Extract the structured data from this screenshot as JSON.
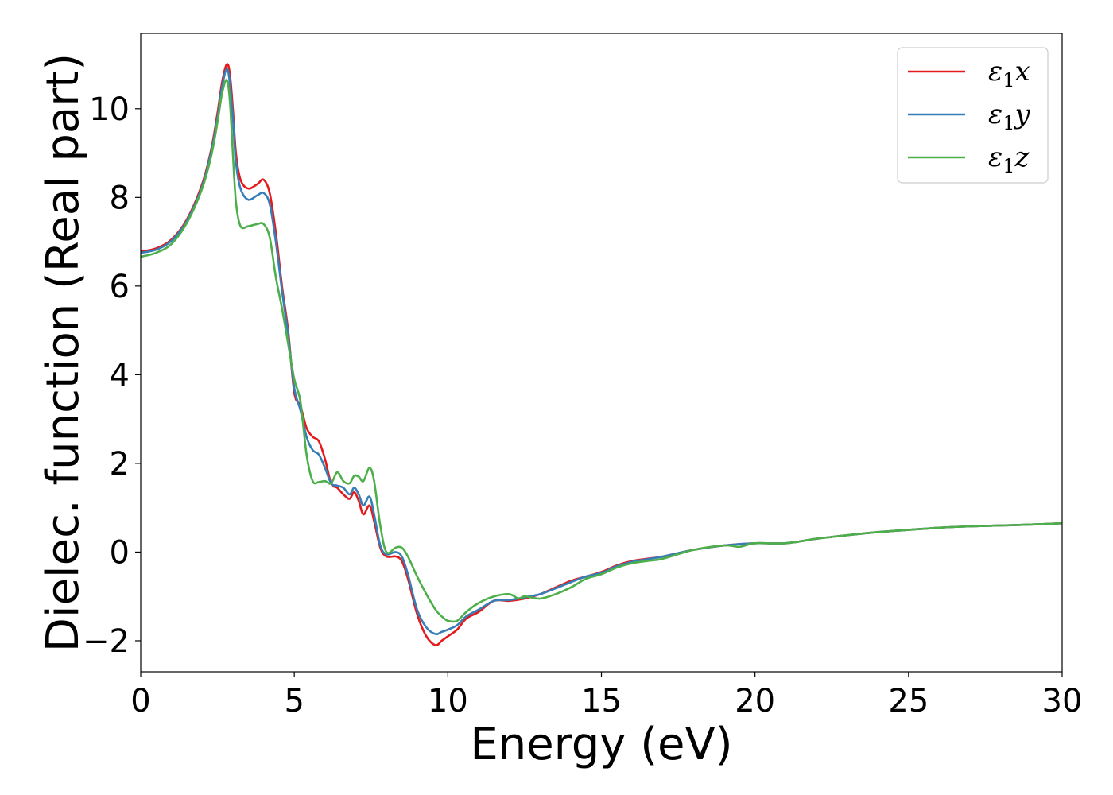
{
  "chart_data": {
    "type": "line",
    "title": "",
    "xlabel": "Energy (eV)",
    "ylabel": "Dielec. function (Real part)",
    "xlim": [
      0,
      30
    ],
    "ylim": [
      -2.7,
      11.7
    ],
    "xticks": [
      0,
      5,
      10,
      15,
      20,
      25,
      30
    ],
    "xtick_labels": [
      "0",
      "5",
      "10",
      "15",
      "20",
      "25",
      "30"
    ],
    "yticks": [
      -2,
      0,
      2,
      4,
      6,
      8,
      10
    ],
    "ytick_labels": [
      "−2",
      "0",
      "2",
      "4",
      "6",
      "8",
      "10"
    ],
    "grid": false,
    "legend": {
      "position": "top-right"
    },
    "series": [
      {
        "name": "ε₁x",
        "legend_base": "ε",
        "legend_sub": "1",
        "legend_var": "x",
        "color": "#e41a1c",
        "points": [
          [
            0,
            6.78
          ],
          [
            0.5,
            6.85
          ],
          [
            1,
            7.05
          ],
          [
            1.5,
            7.5
          ],
          [
            2,
            8.3
          ],
          [
            2.3,
            9.1
          ],
          [
            2.5,
            9.9
          ],
          [
            2.65,
            10.6
          ],
          [
            2.8,
            11.0
          ],
          [
            2.9,
            10.8
          ],
          [
            3.0,
            10.0
          ],
          [
            3.1,
            9.0
          ],
          [
            3.25,
            8.4
          ],
          [
            3.5,
            8.2
          ],
          [
            3.8,
            8.3
          ],
          [
            4.0,
            8.4
          ],
          [
            4.2,
            8.1
          ],
          [
            4.4,
            7.2
          ],
          [
            4.6,
            6.0
          ],
          [
            4.8,
            5.0
          ],
          [
            5.0,
            3.6
          ],
          [
            5.2,
            3.3
          ],
          [
            5.4,
            2.8
          ],
          [
            5.6,
            2.6
          ],
          [
            5.8,
            2.5
          ],
          [
            6.0,
            2.1
          ],
          [
            6.2,
            1.55
          ],
          [
            6.4,
            1.45
          ],
          [
            6.6,
            1.3
          ],
          [
            6.8,
            1.2
          ],
          [
            6.95,
            1.35
          ],
          [
            7.1,
            1.15
          ],
          [
            7.25,
            0.85
          ],
          [
            7.45,
            1.05
          ],
          [
            7.6,
            0.7
          ],
          [
            7.8,
            0.1
          ],
          [
            8.0,
            -0.1
          ],
          [
            8.3,
            -0.1
          ],
          [
            8.5,
            -0.2
          ],
          [
            8.7,
            -0.6
          ],
          [
            9.0,
            -1.4
          ],
          [
            9.3,
            -1.9
          ],
          [
            9.6,
            -2.1
          ],
          [
            9.8,
            -2.0
          ],
          [
            10.0,
            -1.9
          ],
          [
            10.3,
            -1.75
          ],
          [
            10.6,
            -1.5
          ],
          [
            11.0,
            -1.35
          ],
          [
            11.5,
            -1.1
          ],
          [
            12.0,
            -1.1
          ],
          [
            12.5,
            -1.05
          ],
          [
            13.0,
            -0.95
          ],
          [
            13.5,
            -0.8
          ],
          [
            14.0,
            -0.65
          ],
          [
            14.5,
            -0.55
          ],
          [
            15.0,
            -0.45
          ],
          [
            15.5,
            -0.3
          ],
          [
            16.0,
            -0.2
          ],
          [
            16.5,
            -0.15
          ],
          [
            17.0,
            -0.1
          ],
          [
            18.0,
            0.05
          ],
          [
            19.0,
            0.15
          ],
          [
            20.0,
            0.2
          ],
          [
            21.0,
            0.2
          ],
          [
            22.0,
            0.3
          ],
          [
            23.0,
            0.38
          ],
          [
            24.0,
            0.45
          ],
          [
            25.0,
            0.5
          ],
          [
            26.0,
            0.55
          ],
          [
            27.0,
            0.58
          ],
          [
            28.0,
            0.6
          ],
          [
            29.0,
            0.62
          ],
          [
            30.0,
            0.65
          ]
        ]
      },
      {
        "name": "ε₁y",
        "legend_base": "ε",
        "legend_sub": "1",
        "legend_var": "y",
        "color": "#377eb8",
        "points": [
          [
            0,
            6.75
          ],
          [
            0.5,
            6.82
          ],
          [
            1,
            7.02
          ],
          [
            1.5,
            7.47
          ],
          [
            2,
            8.25
          ],
          [
            2.3,
            9.05
          ],
          [
            2.5,
            9.8
          ],
          [
            2.65,
            10.5
          ],
          [
            2.8,
            10.9
          ],
          [
            2.9,
            10.6
          ],
          [
            3.0,
            9.8
          ],
          [
            3.1,
            8.8
          ],
          [
            3.25,
            8.2
          ],
          [
            3.5,
            7.95
          ],
          [
            3.8,
            8.05
          ],
          [
            4.0,
            8.1
          ],
          [
            4.2,
            7.85
          ],
          [
            4.4,
            7.0
          ],
          [
            4.6,
            5.9
          ],
          [
            4.8,
            4.9
          ],
          [
            5.0,
            3.7
          ],
          [
            5.2,
            3.2
          ],
          [
            5.4,
            2.6
          ],
          [
            5.6,
            2.3
          ],
          [
            5.8,
            2.2
          ],
          [
            6.0,
            1.9
          ],
          [
            6.2,
            1.55
          ],
          [
            6.4,
            1.5
          ],
          [
            6.6,
            1.45
          ],
          [
            6.8,
            1.3
          ],
          [
            6.95,
            1.45
          ],
          [
            7.1,
            1.3
          ],
          [
            7.25,
            1.05
          ],
          [
            7.45,
            1.25
          ],
          [
            7.6,
            0.85
          ],
          [
            7.8,
            0.15
          ],
          [
            8.0,
            -0.05
          ],
          [
            8.3,
            0.0
          ],
          [
            8.5,
            -0.1
          ],
          [
            8.7,
            -0.5
          ],
          [
            9.0,
            -1.3
          ],
          [
            9.3,
            -1.7
          ],
          [
            9.6,
            -1.85
          ],
          [
            9.8,
            -1.8
          ],
          [
            10.0,
            -1.75
          ],
          [
            10.3,
            -1.65
          ],
          [
            10.6,
            -1.45
          ],
          [
            11.0,
            -1.3
          ],
          [
            11.5,
            -1.1
          ],
          [
            12.0,
            -1.08
          ],
          [
            12.5,
            -1.02
          ],
          [
            13.0,
            -0.95
          ],
          [
            13.5,
            -0.82
          ],
          [
            14.0,
            -0.68
          ],
          [
            14.5,
            -0.55
          ],
          [
            15.0,
            -0.47
          ],
          [
            15.5,
            -0.32
          ],
          [
            16.0,
            -0.22
          ],
          [
            16.5,
            -0.16
          ],
          [
            17.0,
            -0.1
          ],
          [
            18.0,
            0.05
          ],
          [
            19.0,
            0.15
          ],
          [
            20.0,
            0.2
          ],
          [
            21.0,
            0.2
          ],
          [
            22.0,
            0.3
          ],
          [
            23.0,
            0.38
          ],
          [
            24.0,
            0.45
          ],
          [
            25.0,
            0.5
          ],
          [
            26.0,
            0.55
          ],
          [
            27.0,
            0.58
          ],
          [
            28.0,
            0.6
          ],
          [
            29.0,
            0.62
          ],
          [
            30.0,
            0.65
          ]
        ]
      },
      {
        "name": "ε₁z",
        "legend_base": "ε",
        "legend_sub": "1",
        "legend_var": "z",
        "color": "#4daf4a",
        "points": [
          [
            0,
            6.66
          ],
          [
            0.5,
            6.75
          ],
          [
            1,
            6.95
          ],
          [
            1.5,
            7.42
          ],
          [
            2,
            8.2
          ],
          [
            2.3,
            8.95
          ],
          [
            2.5,
            9.7
          ],
          [
            2.65,
            10.35
          ],
          [
            2.8,
            10.65
          ],
          [
            2.9,
            10.2
          ],
          [
            3.0,
            9.0
          ],
          [
            3.1,
            7.9
          ],
          [
            3.25,
            7.35
          ],
          [
            3.5,
            7.35
          ],
          [
            3.8,
            7.4
          ],
          [
            4.0,
            7.4
          ],
          [
            4.2,
            7.1
          ],
          [
            4.4,
            6.2
          ],
          [
            4.6,
            5.5
          ],
          [
            4.8,
            4.7
          ],
          [
            5.0,
            3.9
          ],
          [
            5.2,
            3.4
          ],
          [
            5.4,
            2.2
          ],
          [
            5.6,
            1.6
          ],
          [
            5.8,
            1.58
          ],
          [
            6.0,
            1.6
          ],
          [
            6.2,
            1.55
          ],
          [
            6.4,
            1.8
          ],
          [
            6.6,
            1.6
          ],
          [
            6.8,
            1.55
          ],
          [
            6.95,
            1.72
          ],
          [
            7.1,
            1.7
          ],
          [
            7.25,
            1.6
          ],
          [
            7.45,
            1.9
          ],
          [
            7.6,
            1.6
          ],
          [
            7.8,
            0.6
          ],
          [
            8.0,
            0.0
          ],
          [
            8.3,
            0.1
          ],
          [
            8.5,
            0.1
          ],
          [
            8.7,
            -0.1
          ],
          [
            9.0,
            -0.55
          ],
          [
            9.3,
            -0.95
          ],
          [
            9.6,
            -1.3
          ],
          [
            9.8,
            -1.45
          ],
          [
            10.0,
            -1.55
          ],
          [
            10.3,
            -1.55
          ],
          [
            10.6,
            -1.35
          ],
          [
            11.0,
            -1.15
          ],
          [
            11.5,
            -1.0
          ],
          [
            12.0,
            -0.95
          ],
          [
            12.3,
            -1.05
          ],
          [
            12.5,
            -1.0
          ],
          [
            13.0,
            -1.05
          ],
          [
            13.5,
            -0.95
          ],
          [
            14.0,
            -0.8
          ],
          [
            14.5,
            -0.6
          ],
          [
            15.0,
            -0.5
          ],
          [
            15.5,
            -0.35
          ],
          [
            16.0,
            -0.25
          ],
          [
            16.5,
            -0.2
          ],
          [
            17.0,
            -0.15
          ],
          [
            18.0,
            0.05
          ],
          [
            19.0,
            0.15
          ],
          [
            19.5,
            0.12
          ],
          [
            20.0,
            0.2
          ],
          [
            21.0,
            0.2
          ],
          [
            22.0,
            0.3
          ],
          [
            23.0,
            0.38
          ],
          [
            24.0,
            0.45
          ],
          [
            25.0,
            0.5
          ],
          [
            26.0,
            0.55
          ],
          [
            27.0,
            0.58
          ],
          [
            28.0,
            0.6
          ],
          [
            29.0,
            0.62
          ],
          [
            30.0,
            0.65
          ]
        ]
      }
    ]
  }
}
